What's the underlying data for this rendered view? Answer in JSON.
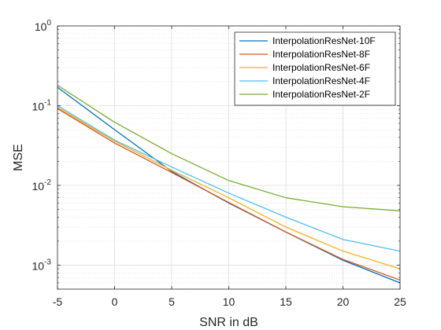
{
  "chart_data": {
    "type": "line",
    "title": "",
    "xlabel": "SNR in dB",
    "ylabel": "MSE",
    "x": [
      -5,
      0,
      5,
      10,
      15,
      20,
      25
    ],
    "xlim": [
      -5,
      25
    ],
    "ylim": [
      0.0005,
      1
    ],
    "yscale": "log",
    "xticks": [
      -5,
      0,
      5,
      10,
      15,
      20,
      25
    ],
    "yticks": [
      {
        "value": 0.001,
        "base": "10",
        "exp": "-3"
      },
      {
        "value": 0.01,
        "base": "10",
        "exp": "-2"
      },
      {
        "value": 0.1,
        "base": "10",
        "exp": "-1"
      },
      {
        "value": 1,
        "base": "10",
        "exp": "0"
      }
    ],
    "grid": true,
    "legend_position": "top-right",
    "series": [
      {
        "name": "InterpolationResNet-10F",
        "color": "#0072BD",
        "values": [
          0.17,
          0.05,
          0.015,
          0.006,
          0.0026,
          0.00115,
          0.0006
        ]
      },
      {
        "name": "InterpolationResNet-8F",
        "color": "#D95319",
        "values": [
          0.092,
          0.034,
          0.0145,
          0.0061,
          0.0026,
          0.00118,
          0.00065
        ]
      },
      {
        "name": "InterpolationResNet-6F",
        "color": "#EDB120",
        "values": [
          0.095,
          0.036,
          0.0155,
          0.007,
          0.003,
          0.0015,
          0.0009
        ]
      },
      {
        "name": "InterpolationResNet-4F",
        "color": "#4DBEEE",
        "values": [
          0.1,
          0.037,
          0.017,
          0.008,
          0.004,
          0.0021,
          0.0015
        ]
      },
      {
        "name": "InterpolationResNet-2F",
        "color": "#77AC30",
        "values": [
          0.18,
          0.062,
          0.025,
          0.0115,
          0.007,
          0.0054,
          0.0048
        ]
      }
    ]
  }
}
